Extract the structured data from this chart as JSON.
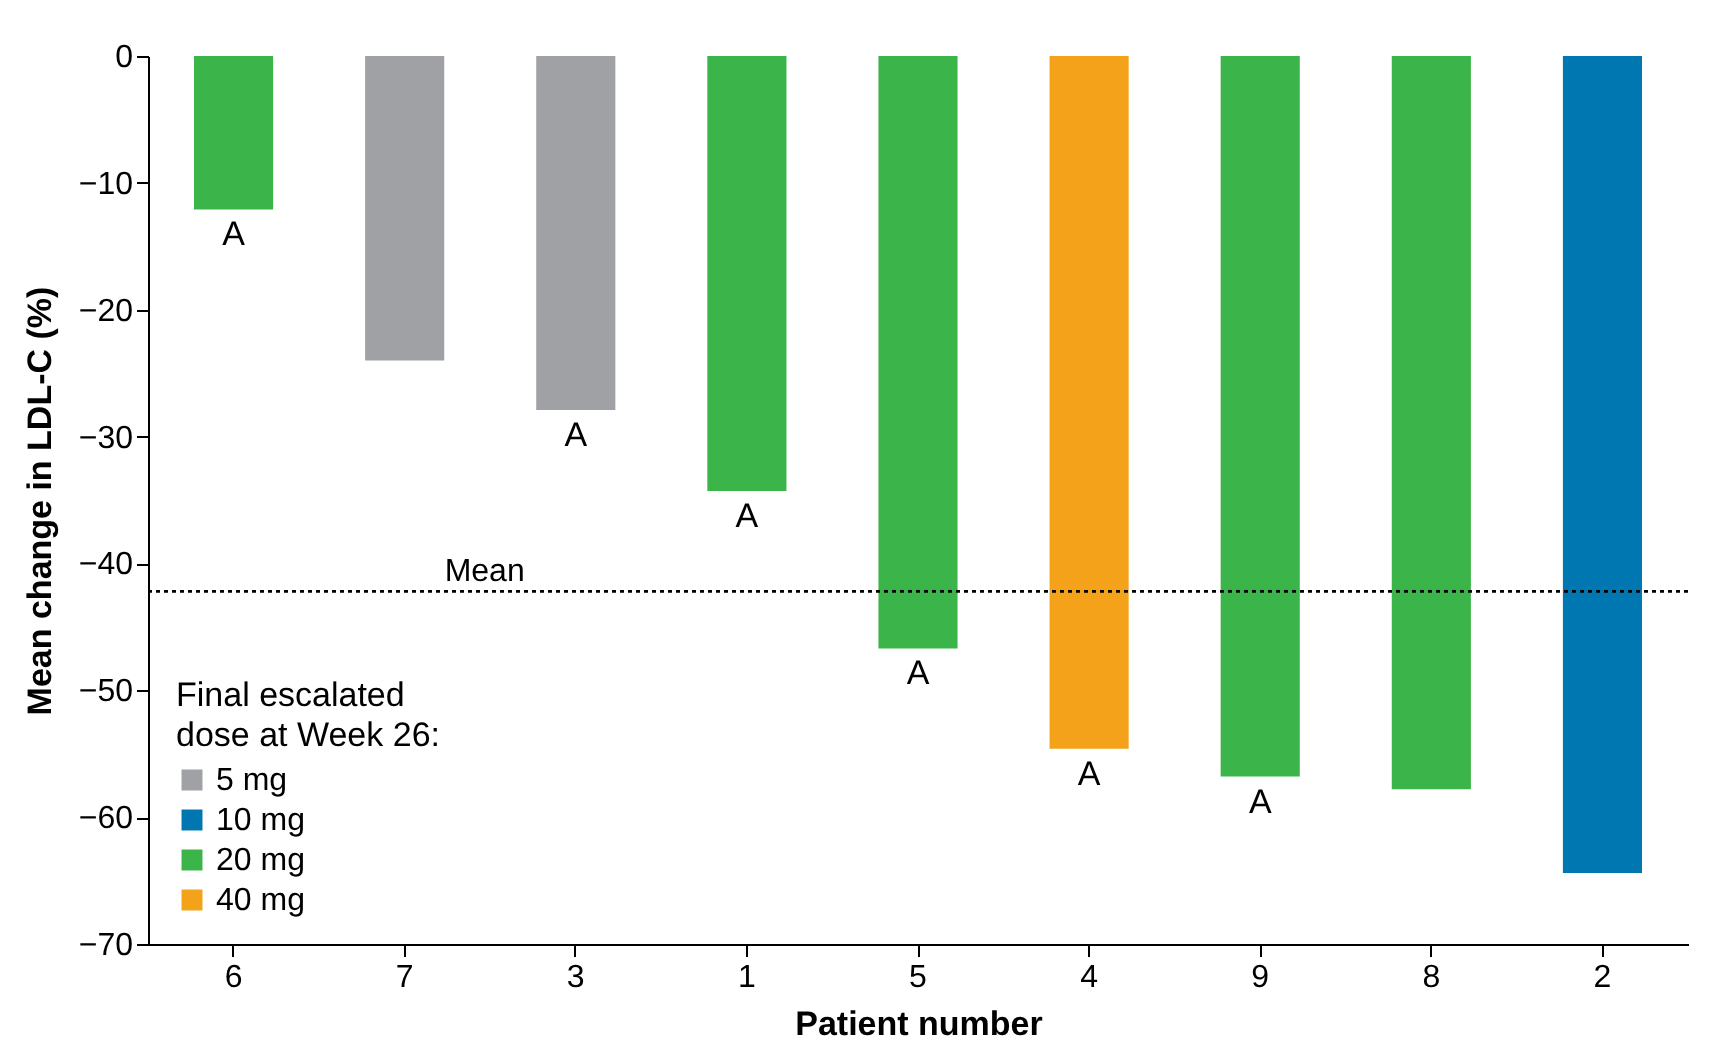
{
  "chart_data": {
    "type": "bar",
    "xlabel": "Patient number",
    "ylabel": "Mean change in LDL-C (%)",
    "legend_title": "Final escalated\ndose at Week 26:",
    "categories": [
      "6",
      "7",
      "3",
      "1",
      "5",
      "4",
      "9",
      "8",
      "2"
    ],
    "series": [
      {
        "name": "5 mg",
        "color": "#a0a1a5",
        "values": [
          null,
          -24,
          -27.9,
          null,
          null,
          null,
          null,
          null,
          null
        ]
      },
      {
        "name": "10 mg",
        "color": "#0077b0",
        "values": [
          null,
          null,
          null,
          null,
          null,
          null,
          null,
          null,
          -64.4
        ]
      },
      {
        "name": "20 mg",
        "color": "#3bb54a",
        "values": [
          -12.1,
          null,
          null,
          -34.3,
          -46.7,
          null,
          -56.8,
          -57.8,
          null
        ]
      },
      {
        "name": "40 mg",
        "color": "#f5a21b",
        "values": [
          null,
          null,
          null,
          null,
          null,
          -54.6,
          null,
          null,
          null
        ]
      }
    ],
    "ylim": [
      -70,
      0
    ],
    "yticks": [
      -70,
      -60,
      -50,
      -40,
      -30,
      -20,
      -10,
      0
    ],
    "grid": false,
    "legend": "bottom left",
    "ref_lines": [
      {
        "axis": "y",
        "value": -42.2,
        "label": "Mean",
        "line_style": "dotted"
      }
    ],
    "annotations": [
      {
        "text": "A",
        "x": "6",
        "y": -12.1
      },
      {
        "text": "A",
        "x": "3",
        "y": -27.9
      },
      {
        "text": "A",
        "x": "1",
        "y": -34.3
      },
      {
        "text": "A",
        "x": "5",
        "y": -46.7
      },
      {
        "text": "A",
        "x": "4",
        "y": -54.6
      },
      {
        "text": "A",
        "x": "9",
        "y": -56.8
      }
    ]
  }
}
